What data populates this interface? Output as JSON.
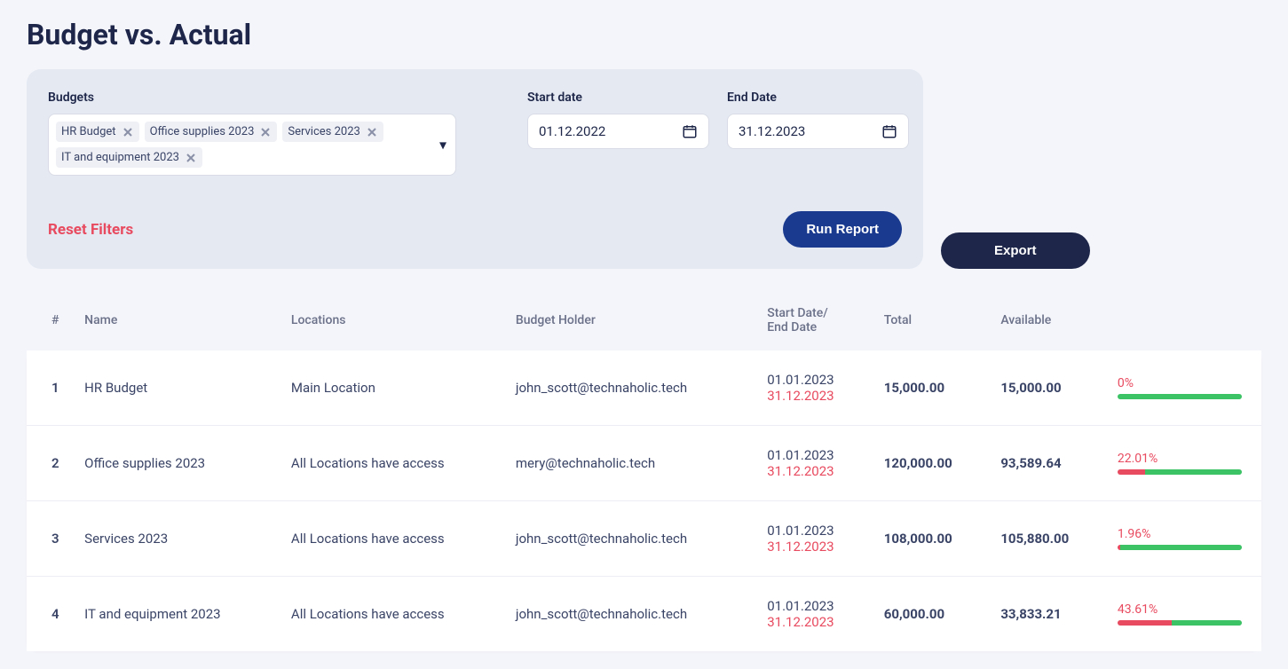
{
  "page": {
    "title": "Budget vs. Actual"
  },
  "filters": {
    "budgets_label": "Budgets",
    "budgets_selected": [
      "HR Budget",
      "Office supplies 2023",
      "Services 2023",
      "IT and equipment 2023"
    ],
    "start_date_label": "Start date",
    "start_date_value": "01.12.2022",
    "end_date_label": "End Date",
    "end_date_value": "31.12.2023",
    "reset_label": "Reset Filters",
    "run_label": "Run Report"
  },
  "export_label": "Export",
  "table": {
    "columns": [
      "#",
      "Name",
      "Locations",
      "Budget Holder",
      "Start Date/\nEnd Date",
      "Total",
      "Available",
      ""
    ],
    "rows": [
      {
        "idx": "1",
        "name": "HR Budget",
        "location": "Main Location",
        "holder": "john_scott@technaholic.tech",
        "start_date": "01.01.2023",
        "end_date": "31.12.2023",
        "total": "15,000.00",
        "available": "15,000.00",
        "pct_label": "0%",
        "pct_used": 0
      },
      {
        "idx": "2",
        "name": "Office supplies 2023",
        "location": "All Locations have access",
        "holder": "mery@technaholic.tech",
        "start_date": "01.01.2023",
        "end_date": "31.12.2023",
        "total": "120,000.00",
        "available": "93,589.64",
        "pct_label": "22.01%",
        "pct_used": 22.01
      },
      {
        "idx": "3",
        "name": "Services 2023",
        "location": "All Locations have access",
        "holder": "john_scott@technaholic.tech",
        "start_date": "01.01.2023",
        "end_date": "31.12.2023",
        "total": "108,000.00",
        "available": "105,880.00",
        "pct_label": "1.96%",
        "pct_used": 1.96
      },
      {
        "idx": "4",
        "name": "IT and equipment 2023",
        "location": "All Locations have access",
        "holder": "john_scott@technaholic.tech",
        "start_date": "01.01.2023",
        "end_date": "31.12.2023",
        "total": "60,000.00",
        "available": "33,833.21",
        "pct_label": "43.61%",
        "pct_used": 43.61
      }
    ]
  },
  "colors": {
    "page_bg": "#f4f5fb",
    "panel_bg": "#e4e9f2",
    "primary_dark": "#1e2749",
    "primary_blue": "#1a3a8f",
    "danger": "#e84a5f",
    "success": "#3cc366",
    "text_muted": "#6b7189",
    "link_blue": "#2b5bd7"
  }
}
